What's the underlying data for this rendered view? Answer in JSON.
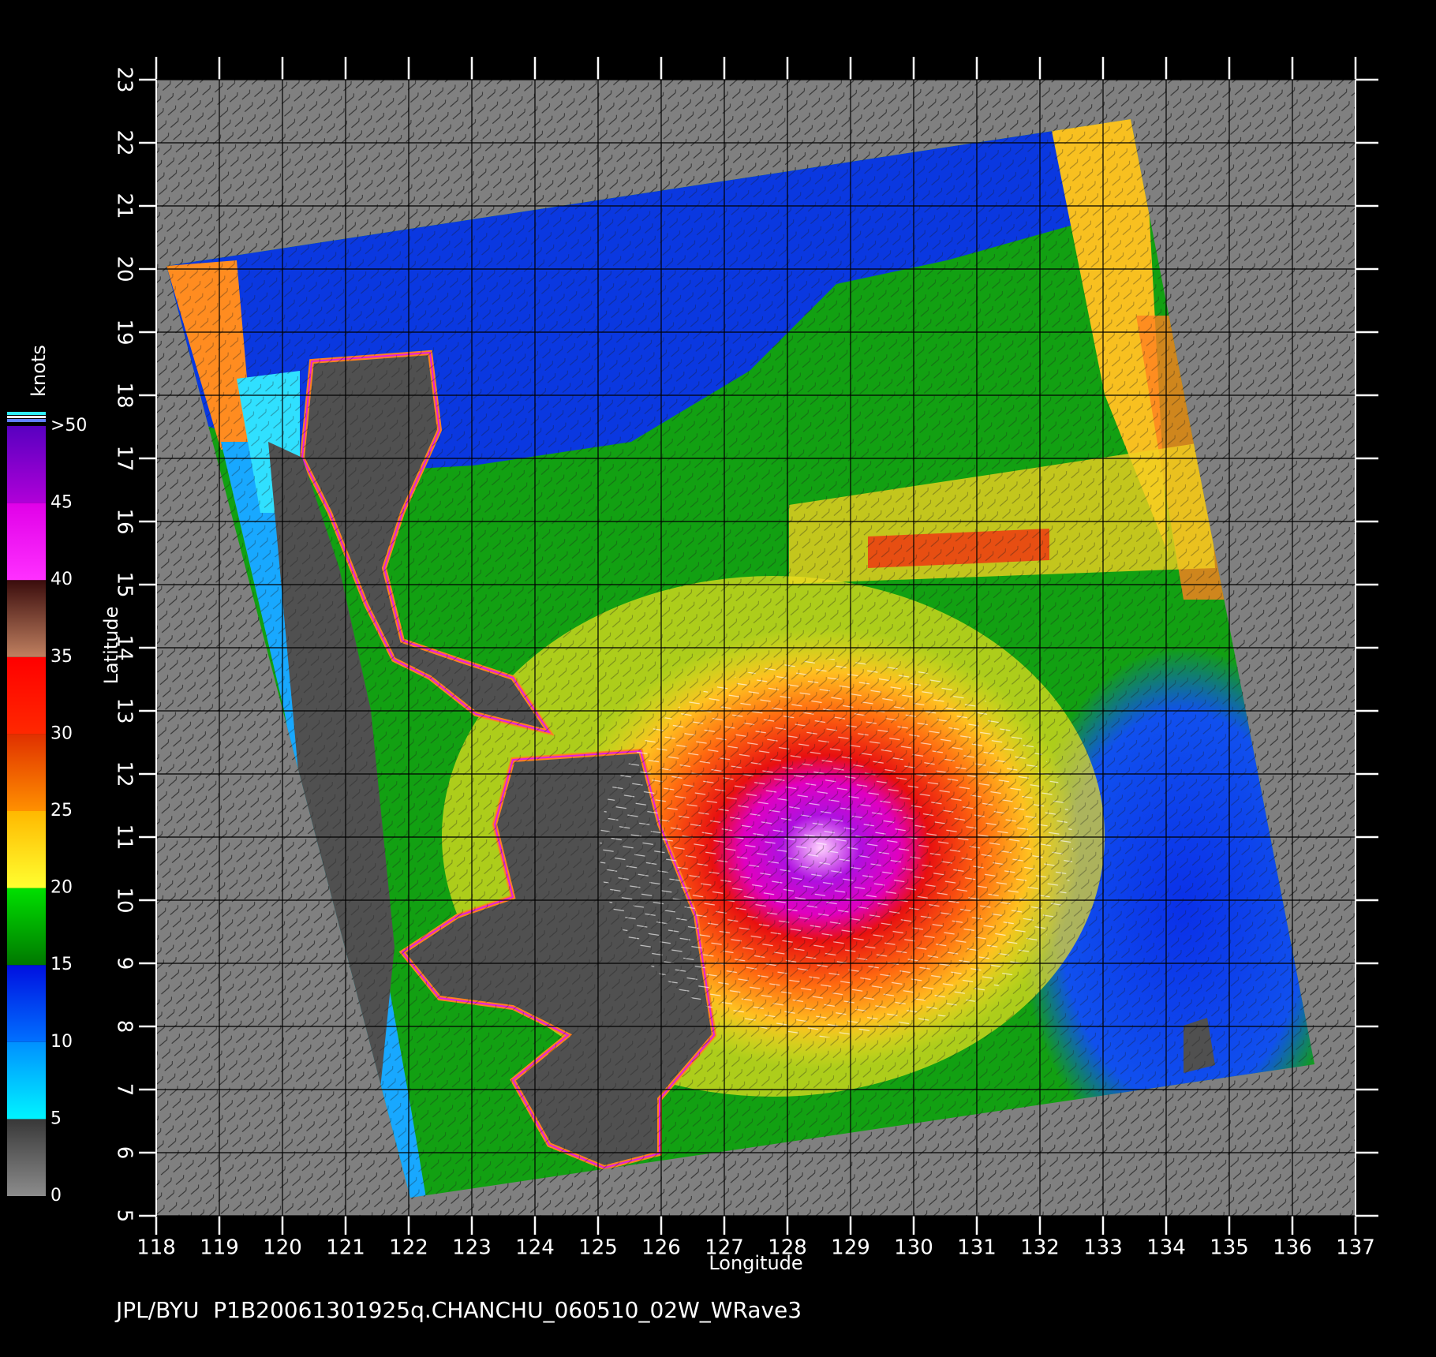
{
  "map": {
    "xlabel": "Longitude",
    "ylabel": "Latitude",
    "xlim": [
      118,
      137
    ],
    "ylim": [
      5,
      23
    ],
    "xticks": [
      118,
      119,
      120,
      121,
      122,
      123,
      124,
      125,
      126,
      127,
      128,
      129,
      130,
      131,
      132,
      133,
      134,
      135,
      136,
      137
    ],
    "yticks": [
      5,
      6,
      7,
      8,
      9,
      10,
      11,
      12,
      13,
      14,
      15,
      16,
      17,
      18,
      19,
      20,
      21,
      22,
      23
    ],
    "grid": true,
    "colorbar": {
      "title": "knots",
      "ticks": [
        0,
        5,
        10,
        15,
        20,
        25,
        30,
        35,
        40,
        45,
        {
          "value": 50,
          "label": ">50"
        }
      ],
      "colors": [
        [
          "#8c8c8c",
          "#383838"
        ],
        [
          "#00f4ff",
          "#0090ff"
        ],
        [
          "#0070ff",
          "#0010e0"
        ],
        [
          "#007800",
          "#00e000"
        ],
        [
          "#ffff30",
          "#ffb800"
        ],
        [
          "#ff9000",
          "#e03000"
        ],
        [
          "#ff2800",
          "#ff0000"
        ],
        [
          "#c08060",
          "#3a0c0c"
        ],
        [
          "#ff30ff",
          "#e000e8"
        ],
        [
          "#b000d8",
          "#5800c0"
        ]
      ]
    },
    "footer": "JPL/BYU  P1B20061301925q.CHANCHU_060510_02W_WRave3"
  }
}
